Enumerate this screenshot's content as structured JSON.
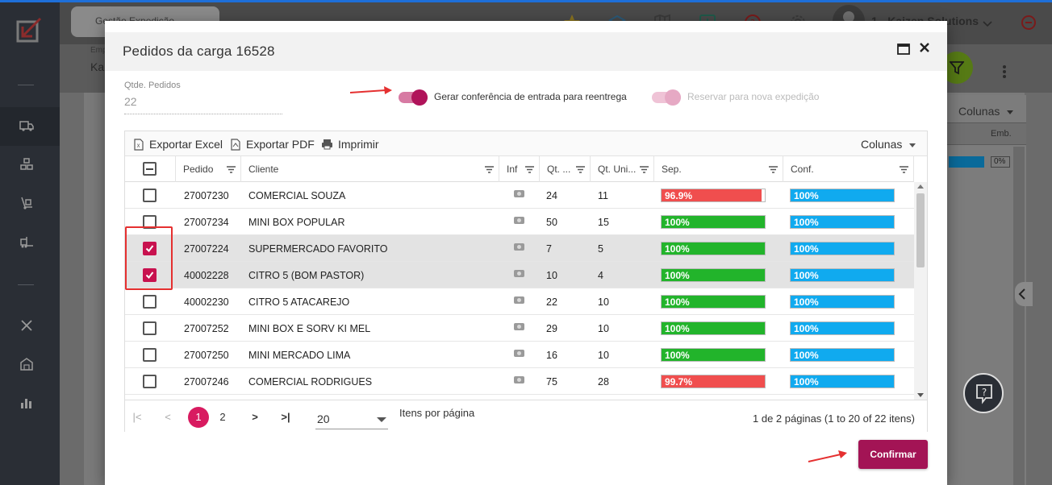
{
  "background": {
    "tab_label": "Gestão Expedição",
    "user_name": "1 - Kaizen Solutions",
    "sub_label_1": "Emp.",
    "sub_label_2": "Kai",
    "columns_label": "Colunas",
    "col_header": "Emb.",
    "zero_value": "0%"
  },
  "modal": {
    "title": "Pedidos da carga 16528",
    "qtde_label": "Qtde. Pedidos",
    "qtde_value": "22",
    "toggle_reentrega_label": "Gerar conferência de entrada para reentrega",
    "toggle_reentrega_on": true,
    "toggle_reserva_label": "Reservar para nova expedição",
    "toggle_reserva_on": true,
    "toggle_reserva_disabled": true,
    "confirm_label": "Confirmar"
  },
  "toolbar": {
    "export_excel": "Exportar Excel",
    "export_pdf": "Exportar PDF",
    "print": "Imprimir",
    "columns": "Colunas"
  },
  "columns": {
    "pedido": "Pedido",
    "cliente": "Cliente",
    "inf": "Inf",
    "qt": "Qt. ...",
    "qt_uni": "Qt. Uni...",
    "sep": "Sep.",
    "conf": "Conf."
  },
  "rows": [
    {
      "checked": false,
      "pedido": "27007230",
      "cliente": "COMERCIAL SOUZA",
      "qt": "24",
      "qt_uni": "11",
      "sep": "96.9%",
      "sep_value": 96.9,
      "conf": "100%",
      "conf_value": 100
    },
    {
      "checked": false,
      "pedido": "27007234",
      "cliente": "MINI BOX POPULAR",
      "qt": "50",
      "qt_uni": "15",
      "sep": "100%",
      "sep_value": 100,
      "conf": "100%",
      "conf_value": 100
    },
    {
      "checked": true,
      "pedido": "27007224",
      "cliente": "SUPERMERCADO FAVORITO",
      "qt": "7",
      "qt_uni": "5",
      "sep": "100%",
      "sep_value": 100,
      "conf": "100%",
      "conf_value": 100
    },
    {
      "checked": true,
      "pedido": "40002228",
      "cliente": "CITRO 5 (BOM PASTOR)",
      "qt": "10",
      "qt_uni": "4",
      "sep": "100%",
      "sep_value": 100,
      "conf": "100%",
      "conf_value": 100
    },
    {
      "checked": false,
      "pedido": "40002230",
      "cliente": "CITRO 5 ATACAREJO",
      "qt": "22",
      "qt_uni": "10",
      "sep": "100%",
      "sep_value": 100,
      "conf": "100%",
      "conf_value": 100
    },
    {
      "checked": false,
      "pedido": "27007252",
      "cliente": "MINI BOX E SORV KI MEL",
      "qt": "29",
      "qt_uni": "10",
      "sep": "100%",
      "sep_value": 100,
      "conf": "100%",
      "conf_value": 100
    },
    {
      "checked": false,
      "pedido": "27007250",
      "cliente": "MINI MERCADO LIMA",
      "qt": "16",
      "qt_uni": "10",
      "sep": "100%",
      "sep_value": 100,
      "conf": "100%",
      "conf_value": 100
    },
    {
      "checked": false,
      "pedido": "27007246",
      "cliente": "COMERCIAL RODRIGUES",
      "qt": "75",
      "qt_uni": "28",
      "sep": "99.7%",
      "sep_value": 99.7,
      "conf": "100%",
      "conf_value": 100
    }
  ],
  "pager": {
    "first": "|<",
    "prev": "<",
    "page_1": "1",
    "page_2": "2",
    "next": ">",
    "last": ">|",
    "page_size": "20",
    "items_per_page_label": "Itens por página",
    "info": "1 de 2 páginas (1 to 20 of 22 itens)"
  },
  "colors": {
    "accent": "#c8124f",
    "confirm": "#a31455",
    "bar_full": "#22b42b",
    "bar_partial": "#f04e4e",
    "bar_conf": "#10aaef"
  }
}
